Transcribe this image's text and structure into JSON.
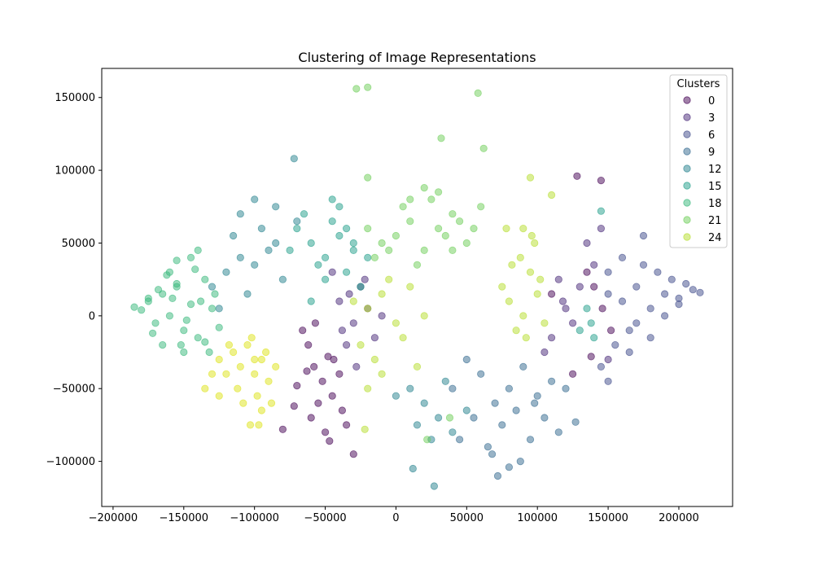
{
  "chart_data": {
    "type": "scatter",
    "title": "Clustering of Image Representations",
    "xlabel": "",
    "ylabel": "",
    "xlim": [
      -208000,
      238000
    ],
    "ylim": [
      -131000,
      170000
    ],
    "x_ticks": [
      -200000,
      -150000,
      -100000,
      -50000,
      0,
      50000,
      100000,
      150000,
      200000
    ],
    "x_tick_labels": [
      "−200000",
      "−150000",
      "−100000",
      "−50000",
      "0",
      "50000",
      "100000",
      "150000",
      "200000"
    ],
    "y_ticks": [
      -100000,
      -50000,
      0,
      50000,
      100000,
      150000
    ],
    "y_tick_labels": [
      "−100000",
      "−50000",
      "0",
      "50000",
      "100000",
      "150000"
    ],
    "grid": false,
    "legend": {
      "title": "Clusters",
      "placement": "top-right",
      "entries": [
        {
          "label": "0",
          "color": "#440154"
        },
        {
          "label": "3",
          "color": "#482878"
        },
        {
          "label": "6",
          "color": "#3e4989"
        },
        {
          "label": "9",
          "color": "#31688e"
        },
        {
          "label": "12",
          "color": "#26828e"
        },
        {
          "label": "15",
          "color": "#1f9e89"
        },
        {
          "label": "18",
          "color": "#35b779"
        },
        {
          "label": "21",
          "color": "#6ece58"
        },
        {
          "label": "24",
          "color": "#b5de2b"
        }
      ]
    },
    "marker_opacity": 0.5,
    "series": [
      {
        "color": "#440154",
        "x": [
          -62000,
          -58000,
          -52000,
          -48000,
          -45000,
          -40000,
          -55000,
          -66000,
          -70000,
          -38000,
          -60000,
          -50000,
          -44000,
          -72000,
          -35000,
          -57000,
          -63000,
          -47000,
          -80000,
          -30000,
          140000,
          146000,
          152000,
          135000,
          128000,
          145000,
          110000,
          125000,
          138000
        ],
        "y": [
          -20000,
          -35000,
          -45000,
          -28000,
          -55000,
          -40000,
          -60000,
          -10000,
          -48000,
          -65000,
          -70000,
          -80000,
          -30000,
          -62000,
          -75000,
          -5000,
          -38000,
          -86000,
          -78000,
          -95000,
          20000,
          5000,
          -10000,
          30000,
          96000,
          93000,
          15000,
          -40000,
          -28000
        ]
      },
      {
        "color": "#482878",
        "x": [
          -40000,
          -30000,
          -25000,
          -35000,
          -20000,
          -45000,
          -15000,
          -28000,
          -38000,
          -22000,
          -10000,
          -33000,
          130000,
          120000,
          110000,
          140000,
          125000,
          135000,
          115000,
          105000,
          150000,
          118000,
          145000
        ],
        "y": [
          10000,
          -5000,
          20000,
          -20000,
          5000,
          30000,
          -15000,
          -35000,
          -10000,
          25000,
          0,
          15000,
          20000,
          5000,
          -15000,
          35000,
          -5000,
          50000,
          25000,
          -25000,
          -30000,
          10000,
          60000
        ]
      },
      {
        "color": "#3e4989",
        "x": [
          150000,
          160000,
          170000,
          180000,
          190000,
          200000,
          210000,
          215000,
          175000,
          185000,
          195000,
          205000,
          165000,
          155000,
          170000,
          160000,
          180000,
          150000,
          190000,
          175000,
          200000,
          145000,
          165000,
          150000
        ],
        "y": [
          15000,
          10000,
          20000,
          5000,
          15000,
          12000,
          18000,
          16000,
          35000,
          30000,
          25000,
          22000,
          -10000,
          -20000,
          -5000,
          40000,
          -15000,
          30000,
          0,
          55000,
          8000,
          -35000,
          -25000,
          -45000
        ]
      },
      {
        "color": "#31688e",
        "x": [
          60000,
          80000,
          70000,
          90000,
          100000,
          110000,
          75000,
          85000,
          95000,
          65000,
          120000,
          50000,
          105000,
          72000,
          68000,
          88000,
          55000,
          115000,
          80000,
          98000,
          40000,
          45000,
          127000
        ],
        "y": [
          -40000,
          -50000,
          -60000,
          -35000,
          -55000,
          -45000,
          -75000,
          -65000,
          -85000,
          -90000,
          -50000,
          -30000,
          -70000,
          -110000,
          -95000,
          -100000,
          -70000,
          -80000,
          -104000,
          -60000,
          -50000,
          -85000,
          -73000
        ]
      },
      {
        "color": "#26828e",
        "x": [
          -120000,
          -110000,
          -100000,
          -90000,
          -80000,
          -130000,
          -115000,
          -105000,
          -95000,
          -85000,
          -125000,
          -70000,
          20000,
          30000,
          10000,
          40000,
          50000,
          0,
          25000,
          15000,
          35000,
          -100000,
          -85000,
          -110000,
          12000,
          27000,
          -72000
        ],
        "y": [
          30000,
          40000,
          35000,
          45000,
          25000,
          20000,
          55000,
          15000,
          60000,
          50000,
          5000,
          65000,
          -60000,
          -70000,
          -50000,
          -80000,
          -65000,
          -55000,
          -85000,
          -75000,
          -45000,
          80000,
          75000,
          70000,
          -105000,
          -117000,
          108000
        ]
      },
      {
        "color": "#1f9e89",
        "x": [
          -60000,
          -50000,
          -40000,
          -30000,
          -70000,
          -45000,
          -55000,
          -35000,
          -65000,
          -25000,
          -75000,
          -40000,
          -50000,
          -30000,
          -60000,
          -20000,
          -45000,
          -35000,
          130000,
          140000,
          135000,
          145000,
          138000
        ],
        "y": [
          50000,
          40000,
          55000,
          45000,
          60000,
          65000,
          35000,
          30000,
          70000,
          20000,
          45000,
          75000,
          25000,
          50000,
          10000,
          40000,
          80000,
          60000,
          -10000,
          -15000,
          5000,
          72000,
          -5000
        ]
      },
      {
        "color": "#35b779",
        "x": [
          -185000,
          -175000,
          -170000,
          -165000,
          -160000,
          -155000,
          -150000,
          -145000,
          -140000,
          -135000,
          -130000,
          -125000,
          -180000,
          -172000,
          -162000,
          -152000,
          -142000,
          -132000,
          -168000,
          -158000,
          -148000,
          -138000,
          -128000,
          -155000,
          -145000,
          -150000,
          -160000,
          -140000,
          -135000,
          -165000,
          -175000,
          -155000
        ],
        "y": [
          6000,
          10000,
          -5000,
          15000,
          0,
          20000,
          -10000,
          8000,
          -15000,
          25000,
          5000,
          -8000,
          4000,
          -12000,
          28000,
          -20000,
          32000,
          -25000,
          18000,
          12000,
          -3000,
          10000,
          15000,
          38000,
          40000,
          -25000,
          30000,
          45000,
          -18000,
          -20000,
          12000,
          22000
        ]
      },
      {
        "color": "#6ece58",
        "x": [
          -20000,
          -10000,
          0,
          10000,
          20000,
          30000,
          40000,
          50000,
          -15000,
          5000,
          25000,
          35000,
          45000,
          15000,
          55000,
          -5000,
          60000,
          30000,
          10000,
          20000,
          40000,
          -28000,
          -20000,
          58000,
          62000,
          32000,
          -20000,
          22000,
          38000
        ],
        "y": [
          60000,
          50000,
          55000,
          65000,
          45000,
          60000,
          70000,
          50000,
          40000,
          75000,
          80000,
          55000,
          65000,
          35000,
          60000,
          45000,
          75000,
          85000,
          80000,
          88000,
          45000,
          156000,
          157000,
          153000,
          115000,
          122000,
          95000,
          -85000,
          -70000
        ]
      },
      {
        "color": "#b5de2b",
        "x": [
          -30000,
          -20000,
          -10000,
          0,
          10000,
          20000,
          -25000,
          -15000,
          -5000,
          5000,
          15000,
          80000,
          90000,
          100000,
          85000,
          95000,
          75000,
          105000,
          88000,
          98000,
          92000,
          82000,
          78000,
          102000,
          -20000,
          -10000,
          90000,
          95000,
          110000,
          96000,
          -22000
        ],
        "y": [
          10000,
          5000,
          15000,
          -5000,
          20000,
          0,
          -20000,
          -30000,
          25000,
          -15000,
          -35000,
          10000,
          0,
          15000,
          -10000,
          30000,
          20000,
          -5000,
          40000,
          50000,
          -15000,
          35000,
          60000,
          25000,
          -50000,
          -40000,
          60000,
          95000,
          83000,
          55000,
          -78000
        ]
      },
      {
        "color": "#dde318",
        "x": [
          -125000,
          -115000,
          -110000,
          -105000,
          -100000,
          -95000,
          -90000,
          -120000,
          -112000,
          -102000,
          -98000,
          -92000,
          -85000,
          -118000,
          -108000,
          -100000,
          -95000,
          -130000,
          -135000,
          -97000,
          -103000,
          -88000,
          -125000
        ],
        "y": [
          -30000,
          -25000,
          -35000,
          -20000,
          -40000,
          -30000,
          -45000,
          -40000,
          -50000,
          -15000,
          -55000,
          -25000,
          -35000,
          -20000,
          -60000,
          -30000,
          -65000,
          -40000,
          -50000,
          -75000,
          -75000,
          -60000,
          -55000
        ]
      }
    ]
  }
}
